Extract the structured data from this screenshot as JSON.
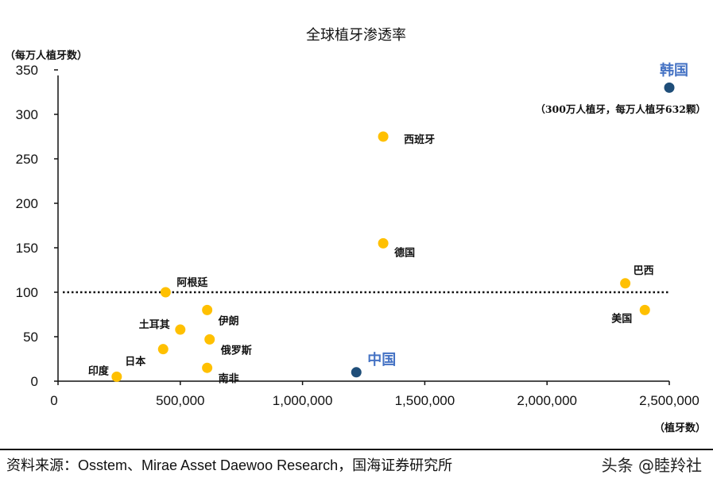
{
  "chart_data": {
    "type": "scatter",
    "title": "全球植牙渗透率",
    "ylabel": "（每万人植牙数）",
    "xlabel": "（植牙数）",
    "xlim": [
      0,
      2500000
    ],
    "ylim": [
      0,
      350
    ],
    "xticks": [
      0,
      500000,
      1000000,
      1500000,
      2000000,
      2500000
    ],
    "xtick_labels": [
      "0",
      "500,000",
      "1,000,000",
      "1,500,000",
      "2,000,000",
      "2,500,000"
    ],
    "yticks": [
      0,
      50,
      100,
      150,
      200,
      250,
      300,
      350
    ],
    "ytick_labels": [
      "0",
      "50",
      "100",
      "150",
      "200",
      "250",
      "300",
      "350"
    ],
    "reference_line": {
      "y": 100,
      "style": "dotted"
    },
    "points": [
      {
        "label": "韩国",
        "x": 2500000,
        "y": 330,
        "color": "#1f4e79",
        "highlight": true
      },
      {
        "label": "西班牙",
        "x": 1330000,
        "y": 275,
        "color": "#ffc000"
      },
      {
        "label": "德国",
        "x": 1330000,
        "y": 155,
        "color": "#ffc000"
      },
      {
        "label": "巴西",
        "x": 2320000,
        "y": 110,
        "color": "#ffc000"
      },
      {
        "label": "美国",
        "x": 2400000,
        "y": 80,
        "color": "#ffc000"
      },
      {
        "label": "阿根廷",
        "x": 440000,
        "y": 100,
        "color": "#ffc000"
      },
      {
        "label": "土耳其",
        "x": 500000,
        "y": 58,
        "color": "#ffc000"
      },
      {
        "label": "伊朗",
        "x": 610000,
        "y": 80,
        "color": "#ffc000"
      },
      {
        "label": "俄罗斯",
        "x": 620000,
        "y": 47,
        "color": "#ffc000"
      },
      {
        "label": "日本",
        "x": 430000,
        "y": 36,
        "color": "#ffc000"
      },
      {
        "label": "南非",
        "x": 610000,
        "y": 15,
        "color": "#ffc000"
      },
      {
        "label": "印度",
        "x": 240000,
        "y": 5,
        "color": "#ffc000"
      },
      {
        "label": "中国",
        "x": 1220000,
        "y": 10,
        "color": "#1f4e79",
        "highlight": true
      }
    ],
    "annotation": "（300万人植牙，每万人植牙632颗）"
  },
  "footer": {
    "source": "资料来源：Osstem、Mirae Asset Daewoo Research，国海证券研究所",
    "watermark": "头条 @睦羚社"
  }
}
